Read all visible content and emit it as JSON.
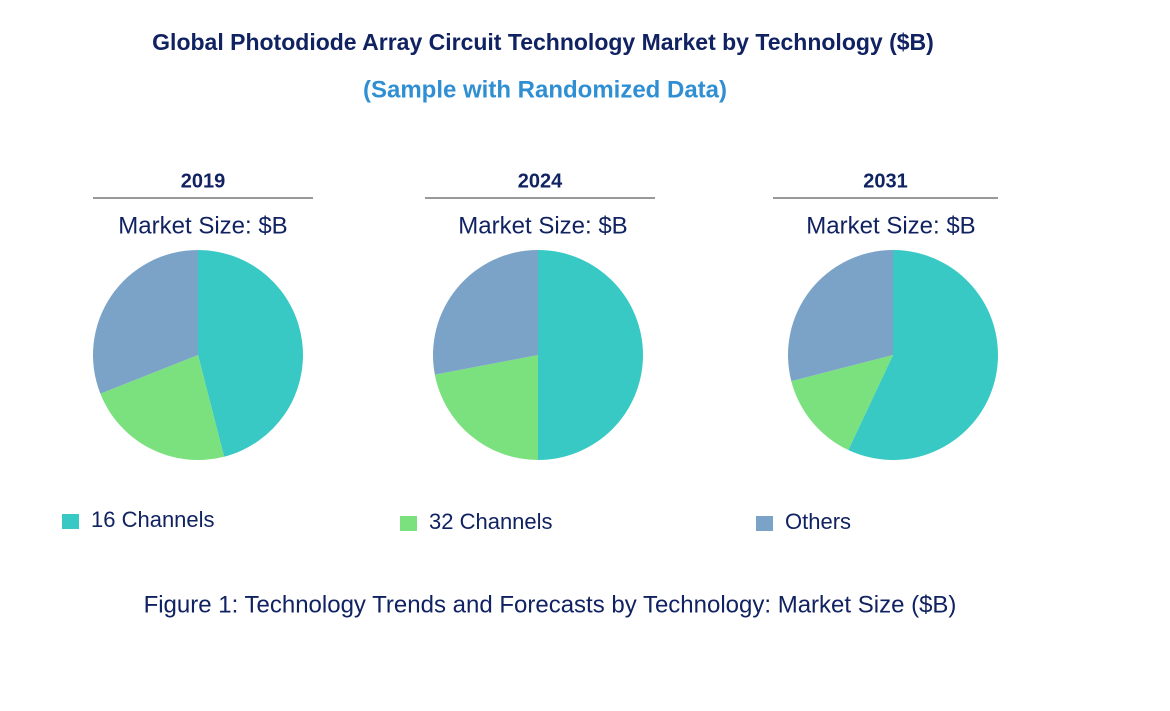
{
  "title": "Global Photodiode Array Circuit Technology Market by Technology ($B)",
  "subtitle": "(Sample with Randomized Data)",
  "legend": {
    "labels": [
      "16 Channels",
      "32 Channels",
      "Others"
    ],
    "colors": [
      "#38c9c5",
      "#7be07e",
      "#7ba3c8"
    ]
  },
  "chart_data": [
    {
      "type": "pie",
      "title": "2019",
      "subtitle": "Market Size: $B",
      "values": [
        46,
        23,
        31
      ]
    },
    {
      "type": "pie",
      "title": "2024",
      "subtitle": "Market Size: $B",
      "values": [
        50,
        22,
        28
      ]
    },
    {
      "type": "pie",
      "title": "2031",
      "subtitle": "Market Size: $B",
      "values": [
        57,
        14,
        29
      ]
    }
  ],
  "caption": "Figure 1: Technology Trends and Forecasts by Technology: Market Size ($B)"
}
